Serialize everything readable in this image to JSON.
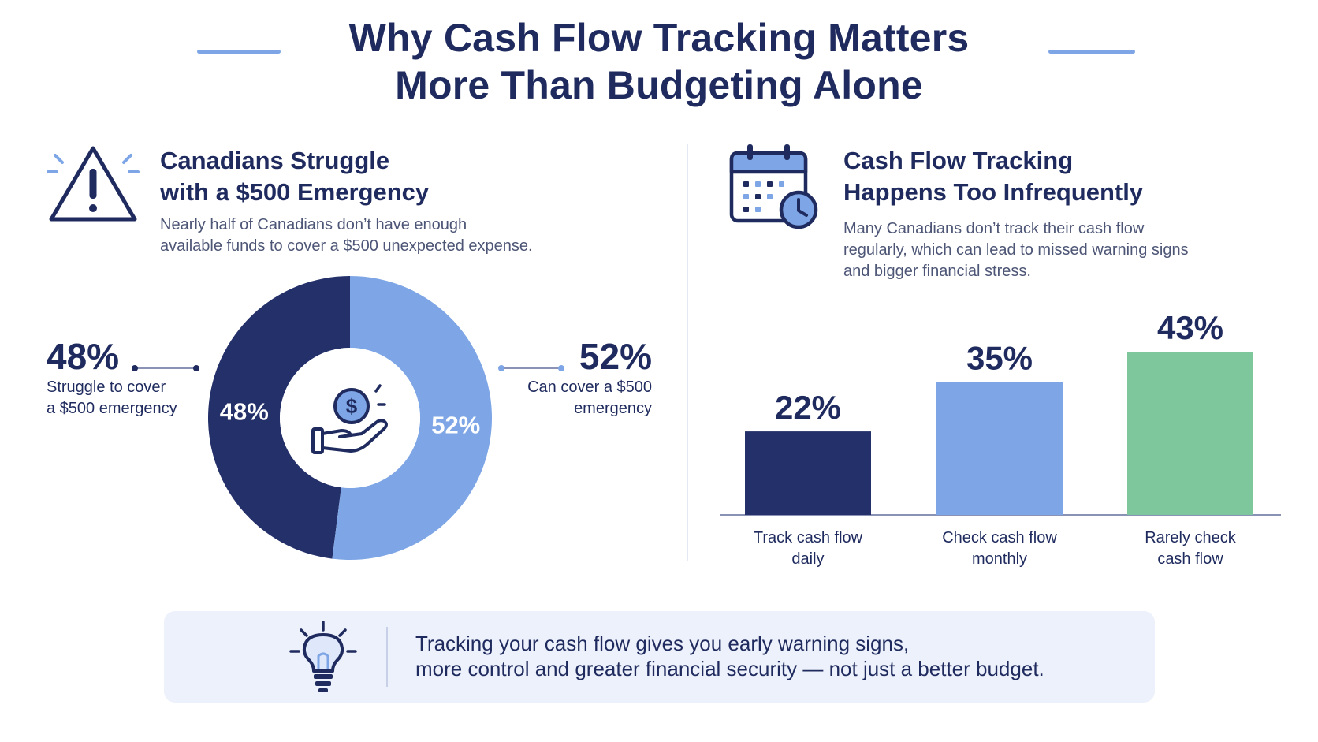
{
  "title": {
    "line1": "Why Cash Flow Tracking Matters",
    "line2": "More Than Budgeting Alone"
  },
  "left_panel": {
    "icon": "warning-triangle-icon",
    "heading_line1": "Canadians Struggle",
    "heading_line2": "with a $500 Emergency",
    "desc_line1": "Nearly half of Canadians don’t have enough",
    "desc_line2": "available funds to cover a $500 unexpected expense.",
    "left_callout": {
      "value": "48%",
      "label_line1": "Struggle to cover",
      "label_line2": "a $500 emergency"
    },
    "right_callout": {
      "value": "52%",
      "label_line1": "Can cover a $500",
      "label_line2": "emergency"
    },
    "center_icon": "hand-holding-dollar-icon"
  },
  "right_panel": {
    "icon": "calendar-clock-icon",
    "heading_line1": "Cash Flow Tracking",
    "heading_line2": "Happens Too Infrequently",
    "desc_line1": "Many Canadians don’t track their cash flow",
    "desc_line2": "regularly, which can lead to missed warning signs",
    "desc_line3": "and bigger financial stress."
  },
  "callout": {
    "icon": "lightbulb-icon",
    "line1": "Tracking your cash flow gives you early warning signs,",
    "line2": "more control and greater financial security — not just a better budget."
  },
  "colors": {
    "navy": "#24306a",
    "light_blue": "#7ea6e6",
    "green": "#7ec79c",
    "text": "#1f2b5e"
  },
  "chart_data": [
    {
      "type": "pie",
      "style": "donut",
      "categories": [
        "Struggle to cover a $500 emergency",
        "Can cover a $500 emergency"
      ],
      "values": [
        48,
        52
      ],
      "slice_labels": [
        "48%",
        "52%"
      ],
      "colors": [
        "#24306a",
        "#7ea6e6"
      ]
    },
    {
      "type": "bar",
      "categories": [
        "Track cash flow daily",
        "Check cash flow monthly",
        "Rarely check cash flow"
      ],
      "category_lines": [
        [
          "Track cash flow",
          "daily"
        ],
        [
          "Check cash flow",
          "monthly"
        ],
        [
          "Rarely check",
          "cash flow"
        ]
      ],
      "values": [
        22,
        35,
        43
      ],
      "value_labels": [
        "22%",
        "35%",
        "43%"
      ],
      "colors": [
        "#24306a",
        "#7ea6e6",
        "#7ec79c"
      ],
      "ylim": [
        0,
        43
      ],
      "grid": false
    }
  ]
}
